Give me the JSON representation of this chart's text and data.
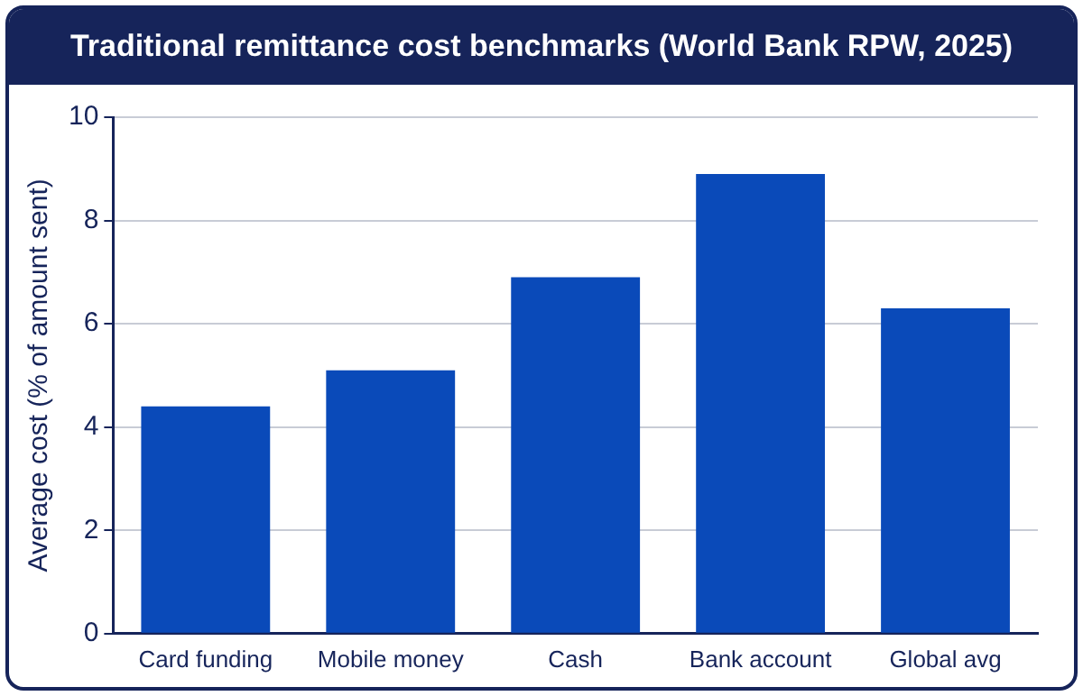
{
  "chart_data": {
    "type": "bar",
    "title": "Traditional remittance cost benchmarks (World Bank RPW, 2025)",
    "ylabel": "Average cost (% of amount sent)",
    "categories": [
      "Card funding",
      "Mobile money",
      "Cash",
      "Bank account",
      "Global avg"
    ],
    "values": [
      4.4,
      5.1,
      6.9,
      8.9,
      6.3
    ],
    "color": "#0a4ab9",
    "ylim": [
      0,
      10
    ],
    "yticks": [
      0,
      2,
      4,
      6,
      8,
      10
    ],
    "grid": "y"
  }
}
